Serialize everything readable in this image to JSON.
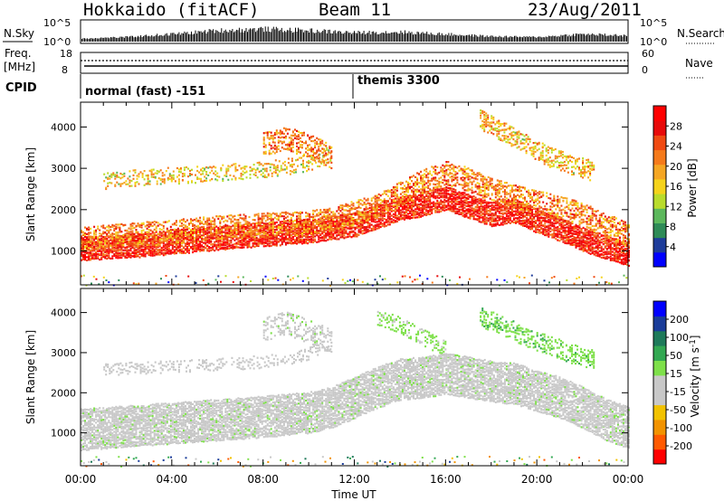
{
  "header": {
    "station": "Hokkaido (fitACF)",
    "beam": "Beam 11",
    "date": "23/Aug/2011"
  },
  "status_panels": {
    "nsky_label": "N.Sky",
    "nsearch_label": "N.Search",
    "freq_label": "Freq.",
    "freq_unit": "[MHz]",
    "nave_label": "Nave",
    "cpid_label": "CPID",
    "noise_ticks_left": [
      "10^5",
      "10^0"
    ],
    "noise_ticks_right": [
      "10^5",
      "10^0"
    ],
    "freq_ticks": [
      "18",
      "8"
    ],
    "nave_ticks": [
      "60",
      "0"
    ],
    "cpid_segments": [
      {
        "start_hour": 0,
        "label": "normal (fast) -151"
      },
      {
        "start_hour": 12,
        "label": "themis 3300"
      }
    ]
  },
  "colors": {
    "power_scale": [
      "#0000ff",
      "#1e3c9a",
      "#2e8b57",
      "#5cb85c",
      "#b9dc2c",
      "#f5d31b",
      "#f5a623",
      "#f57a1b",
      "#f04a12",
      "#e80a0a",
      "#ff0000"
    ],
    "velocity_scale": [
      "#ff0000",
      "#ff5a00",
      "#f29300",
      "#f2c200",
      "#c8c8c8",
      "#c8c8c8",
      "#7ee04a",
      "#32a852",
      "#1e7a5a",
      "#1a3c99",
      "#0000ff"
    ],
    "ground_scatter": "#c8c8c8"
  },
  "chart_data": [
    {
      "type": "heatmap",
      "name": "power",
      "title": "",
      "xlabel": "",
      "ylabel": "Slant Range [km]",
      "xlim": [
        0,
        24
      ],
      "ylim": [
        180,
        4600
      ],
      "y_ticks": [
        1000,
        2000,
        3000,
        4000
      ],
      "colorbar": {
        "label": "Power [dB]",
        "range": [
          0,
          32
        ],
        "ticks": [
          4,
          8,
          12,
          16,
          20,
          24,
          28
        ]
      },
      "bands": [
        {
          "x": [
            0,
            2,
            4,
            6,
            8,
            10,
            11,
            12,
            13,
            14,
            15,
            16,
            17,
            18,
            19,
            20,
            21,
            22,
            23,
            24
          ],
          "y": [
            1080,
            1130,
            1230,
            1330,
            1420,
            1500,
            1580,
            1650,
            1850,
            2050,
            2150,
            2300,
            2100,
            1900,
            2000,
            1750,
            1550,
            1300,
            1100,
            950
          ],
          "width": 260,
          "value": 29,
          "density": 0.9
        },
        {
          "x": [
            0,
            2,
            4,
            6,
            8,
            10,
            11,
            12,
            13,
            14,
            15,
            16,
            17,
            18,
            19,
            20,
            21,
            22,
            23,
            24
          ],
          "y": [
            1300,
            1400,
            1480,
            1580,
            1650,
            1700,
            1780,
            1950,
            2100,
            2400,
            2700,
            2900,
            2750,
            2500,
            2350,
            2200,
            2050,
            1900,
            1650,
            1400
          ],
          "width": 280,
          "value": 22,
          "density": 0.55
        },
        {
          "x": [
            1,
            3,
            5,
            7,
            9,
            10,
            11
          ],
          "y": [
            2700,
            2820,
            2860,
            2950,
            3050,
            3150,
            3400
          ],
          "width": 160,
          "value": 17,
          "density": 0.35
        },
        {
          "x": [
            8,
            9,
            10,
            11
          ],
          "y": [
            3600,
            3750,
            3550,
            3300
          ],
          "width": 260,
          "value": 22,
          "density": 0.45
        },
        {
          "x": [
            17.5,
            18.5,
            19.5,
            20.5,
            21.5,
            22.5
          ],
          "y": [
            4200,
            3900,
            3600,
            3300,
            3100,
            2950
          ],
          "width": 230,
          "value": 18,
          "density": 0.5
        }
      ]
    },
    {
      "type": "heatmap",
      "name": "velocity",
      "title": "",
      "xlabel": "Time UT",
      "ylabel": "Slant Range [km]",
      "xlim": [
        0,
        24
      ],
      "ylim": [
        180,
        4600
      ],
      "y_ticks": [
        1000,
        2000,
        3000,
        4000
      ],
      "x_ticks": [
        "00:00",
        "04:00",
        "08:00",
        "12:00",
        "16:00",
        "20:00",
        "00:00"
      ],
      "colorbar": {
        "label": "Velocity [m s^-1]",
        "range": [
          -250,
          250
        ],
        "ticks": [
          -200,
          -100,
          -50,
          -15,
          15,
          50,
          100,
          200
        ]
      },
      "bands": [
        {
          "x": [
            0,
            2,
            4,
            6,
            8,
            10,
            11,
            12,
            13,
            14,
            15,
            16,
            17,
            18,
            19,
            20,
            21,
            22,
            23,
            24
          ],
          "y": [
            1100,
            1180,
            1260,
            1340,
            1420,
            1520,
            1650,
            1900,
            2150,
            2350,
            2400,
            2500,
            2400,
            2300,
            2250,
            2050,
            1900,
            1650,
            1350,
            1150
          ],
          "width": 480,
          "value": 0,
          "density": 0.85
        },
        {
          "x": [
            1,
            3,
            5,
            7,
            9,
            10,
            11
          ],
          "y": [
            2600,
            2650,
            2700,
            2750,
            2850,
            3000,
            3250
          ],
          "width": 150,
          "value": -40,
          "density": 0.3
        },
        {
          "x": [
            8,
            9,
            10,
            11
          ],
          "y": [
            3600,
            3750,
            3550,
            3300
          ],
          "width": 250,
          "value": 0,
          "density": 0.4
        },
        {
          "x": [
            13,
            14,
            15,
            16
          ],
          "y": [
            3900,
            3700,
            3400,
            3100
          ],
          "width": 200,
          "value": 45,
          "density": 0.35
        },
        {
          "x": [
            17.5,
            18.5,
            19.5,
            20.5,
            21.5,
            22.5
          ],
          "y": [
            3900,
            3700,
            3400,
            3200,
            3000,
            2850
          ],
          "width": 220,
          "value": 55,
          "density": 0.4
        }
      ]
    },
    {
      "type": "line",
      "name": "noise_and_freq",
      "xlim": [
        0,
        24
      ],
      "series": [
        {
          "name": "N.Sky",
          "x": [
            0,
            2,
            4,
            6,
            8,
            10,
            12,
            14,
            16,
            18,
            20,
            22,
            24
          ],
          "y": [
            0.3,
            0.5,
            0.9,
            1.4,
            1.6,
            1.4,
            1.1,
            1.2,
            0.9,
            0.6,
            0.5,
            0.9,
            0.7
          ]
        },
        {
          "name": "Freq.",
          "x": [
            0,
            24
          ],
          "y": [
            10.8,
            10.8
          ]
        }
      ]
    }
  ]
}
